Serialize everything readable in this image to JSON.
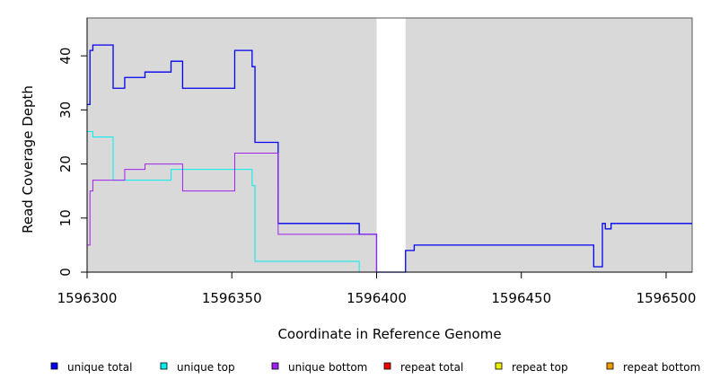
{
  "chart_data": {
    "type": "line",
    "xlabel": "Coordinate in Reference Genome",
    "ylabel": "Read Coverage Depth",
    "xlim": [
      1596300,
      1596509
    ],
    "ylim": [
      0,
      47
    ],
    "x_ticks": [
      1596300,
      1596350,
      1596400,
      1596450,
      1596500
    ],
    "y_ticks": [
      0,
      10,
      20,
      30,
      40
    ],
    "background_regions": [
      [
        1596300,
        1596400
      ],
      [
        1596410,
        1596509
      ]
    ],
    "legend": {
      "placement": "bottom",
      "entries": [
        {
          "label": "unique total",
          "color": "#0000ee"
        },
        {
          "label": "unique top",
          "color": "#00eeee"
        },
        {
          "label": "unique bottom",
          "color": "#a020f0"
        },
        {
          "label": "repeat total",
          "color": "#ee0000"
        },
        {
          "label": "repeat top",
          "color": "#eeee00"
        },
        {
          "label": "repeat bottom",
          "color": "#ee9a00"
        }
      ]
    },
    "series": [
      {
        "name": "unique total",
        "color": "#0000ee",
        "width": 1.3,
        "points": [
          [
            1596300,
            31
          ],
          [
            1596301,
            41
          ],
          [
            1596302,
            42
          ],
          [
            1596309,
            34
          ],
          [
            1596313,
            36
          ],
          [
            1596320,
            37
          ],
          [
            1596329,
            39
          ],
          [
            1596333,
            34
          ],
          [
            1596351,
            41
          ],
          [
            1596357,
            38
          ],
          [
            1596358,
            24
          ],
          [
            1596366,
            9
          ],
          [
            1596394,
            7
          ],
          [
            1596400,
            0
          ],
          [
            1596410,
            4
          ],
          [
            1596413,
            5
          ],
          [
            1596475,
            1
          ],
          [
            1596478,
            9
          ],
          [
            1596479,
            8
          ],
          [
            1596481,
            9
          ],
          [
            1596509,
            9
          ]
        ]
      },
      {
        "name": "unique top",
        "color": "#00eeee",
        "width": 1,
        "points": [
          [
            1596300,
            26
          ],
          [
            1596302,
            25
          ],
          [
            1596309,
            17
          ],
          [
            1596329,
            19
          ],
          [
            1596357,
            16
          ],
          [
            1596358,
            2
          ],
          [
            1596394,
            0
          ],
          [
            1596509,
            0
          ]
        ]
      },
      {
        "name": "unique bottom",
        "color": "#a020f0",
        "width": 1,
        "points": [
          [
            1596300,
            5
          ],
          [
            1596301,
            15
          ],
          [
            1596302,
            17
          ],
          [
            1596313,
            19
          ],
          [
            1596320,
            20
          ],
          [
            1596333,
            15
          ],
          [
            1596351,
            22
          ],
          [
            1596366,
            7
          ],
          [
            1596394,
            7
          ],
          [
            1596400,
            0
          ],
          [
            1596509,
            0
          ]
        ]
      },
      {
        "name": "repeat bottom",
        "color": "#ee9a00",
        "width": 1,
        "points": [
          [
            1596300,
            0
          ],
          [
            1596400,
            0
          ]
        ]
      }
    ]
  }
}
